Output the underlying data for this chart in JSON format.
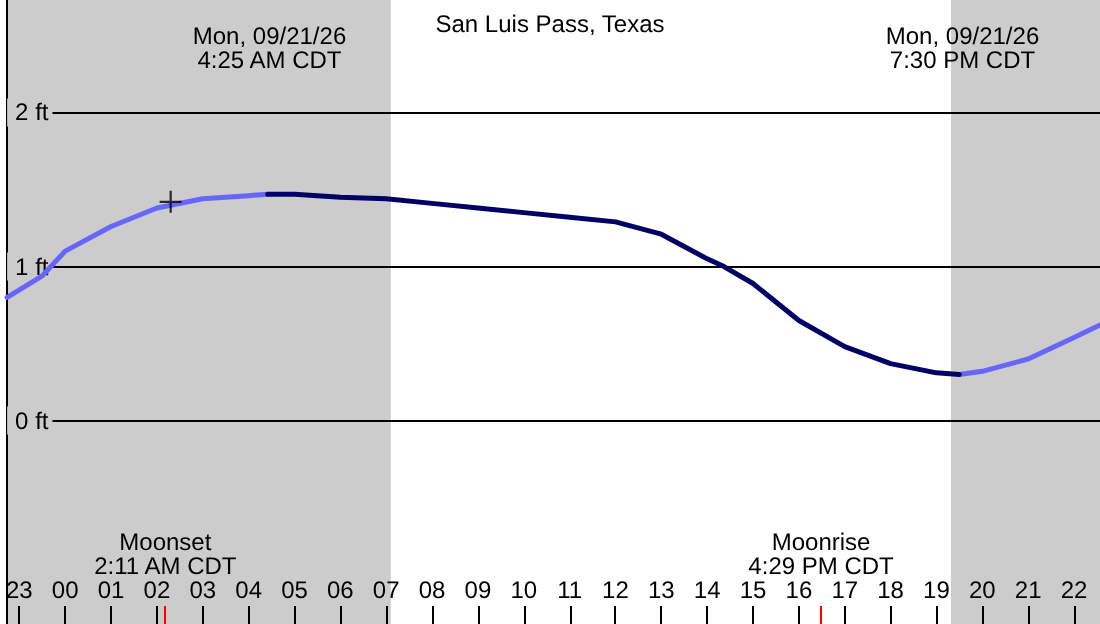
{
  "chart_data": {
    "type": "line",
    "title": "San Luis Pass, Texas",
    "xlim": [
      "--09-20T22:44",
      "--09-21T22:34"
    ],
    "xticks": [
      {
        "value": "--09-20T23:00",
        "label": "23"
      },
      {
        "value": "--09-21T00:00",
        "label": "00"
      },
      {
        "value": "--09-21T01:00",
        "label": "01"
      },
      {
        "value": "--09-21T02:00",
        "label": "02"
      },
      {
        "value": "--09-21T03:00",
        "label": "03"
      },
      {
        "value": "--09-21T04:00",
        "label": "04"
      },
      {
        "value": "--09-21T05:00",
        "label": "05"
      },
      {
        "value": "--09-21T06:00",
        "label": "06"
      },
      {
        "value": "--09-21T07:00",
        "label": "07"
      },
      {
        "value": "--09-21T08:00",
        "label": "08"
      },
      {
        "value": "--09-21T09:00",
        "label": "09"
      },
      {
        "value": "--09-21T10:00",
        "label": "10"
      },
      {
        "value": "--09-21T11:00",
        "label": "11"
      },
      {
        "value": "--09-21T12:00",
        "label": "12"
      },
      {
        "value": "--09-21T13:00",
        "label": "13"
      },
      {
        "value": "--09-21T14:00",
        "label": "14"
      },
      {
        "value": "--09-21T15:00",
        "label": "15"
      },
      {
        "value": "--09-21T16:00",
        "label": "16"
      },
      {
        "value": "--09-21T17:00",
        "label": "17"
      },
      {
        "value": "--09-21T18:00",
        "label": "18"
      },
      {
        "value": "--09-21T19:00",
        "label": "19"
      },
      {
        "value": "--09-21T20:00",
        "label": "20"
      },
      {
        "value": "--09-21T21:00",
        "label": "21"
      },
      {
        "value": "--09-21T22:00",
        "label": "22"
      }
    ],
    "ylim": [
      -1.32,
      2.73
    ],
    "yticks": [
      {
        "value": 0,
        "label": "0 ft"
      },
      {
        "value": 1,
        "label": "1 ft"
      },
      {
        "value": 2,
        "label": "2 ft"
      }
    ],
    "grid": "y",
    "line_style": "solid",
    "series": [
      {
        "color": "#6666ff",
        "x": [
          "--09-20T22:44",
          "--09-20T23:30",
          "--09-21T00:00",
          "--09-21T01:00",
          "--09-21T02:00",
          "--09-21T03:00",
          "--09-21T04:00",
          "--09-21T04:25",
          "--09-21T12:00",
          "--09-21T19:30",
          "--09-21T20:00",
          "--09-21T21:00",
          "--09-21T22:00",
          "--09-21T22:34"
        ],
        "values": [
          0.8,
          0.94,
          1.1,
          1.26,
          1.38,
          1.44,
          1.46,
          1.47,
          null,
          0.3,
          0.32,
          0.4,
          0.54,
          0.62
        ]
      },
      {
        "color": "#000066",
        "x": [
          "--09-21T04:25",
          "--09-21T05:00",
          "--09-21T06:00",
          "--09-21T07:00",
          "--09-21T08:00",
          "--09-21T09:00",
          "--09-21T10:00",
          "--09-21T11:00",
          "--09-21T12:00",
          "--09-21T13:00",
          "--09-21T14:00",
          "--09-21T14:22",
          "--09-21T15:00",
          "--09-21T16:00",
          "--09-21T17:00",
          "--09-21T18:00",
          "--09-21T19:00",
          "--09-21T19:30"
        ],
        "values": [
          1.47,
          1.47,
          1.45,
          1.44,
          1.41,
          1.38,
          1.35,
          1.32,
          1.29,
          1.21,
          1.05,
          1.0,
          0.89,
          0.65,
          0.48,
          0.37,
          0.31,
          0.3
        ]
      },
      {
        "type": "scatter",
        "marker": "cross",
        "color": "#000000",
        "x": [
          "--09-21T02:18"
        ],
        "values": [
          1.42
        ]
      }
    ],
    "bands": [
      {
        "axis": "x",
        "from": "--09-20T22:44",
        "to": "--09-21T07:06",
        "color": "#cccccc"
      },
      {
        "axis": "x",
        "from": "--09-21T19:19",
        "to": "--09-21T22:34",
        "color": "#cccccc"
      }
    ],
    "ref_lines": [
      {
        "axis": "x",
        "value": "--09-21T02:11",
        "label": "Moonset\n2:11 AM CDT",
        "color": "#ff0000"
      },
      {
        "axis": "x",
        "value": "--09-21T16:29",
        "label": "Moonrise\n4:29 PM CDT",
        "color": "#ff0000"
      }
    ],
    "annotations": [
      "Mon, 09/21/26\n4:25 AM CDT",
      "Mon, 09/21/26\n7:30 PM CDT"
    ]
  }
}
